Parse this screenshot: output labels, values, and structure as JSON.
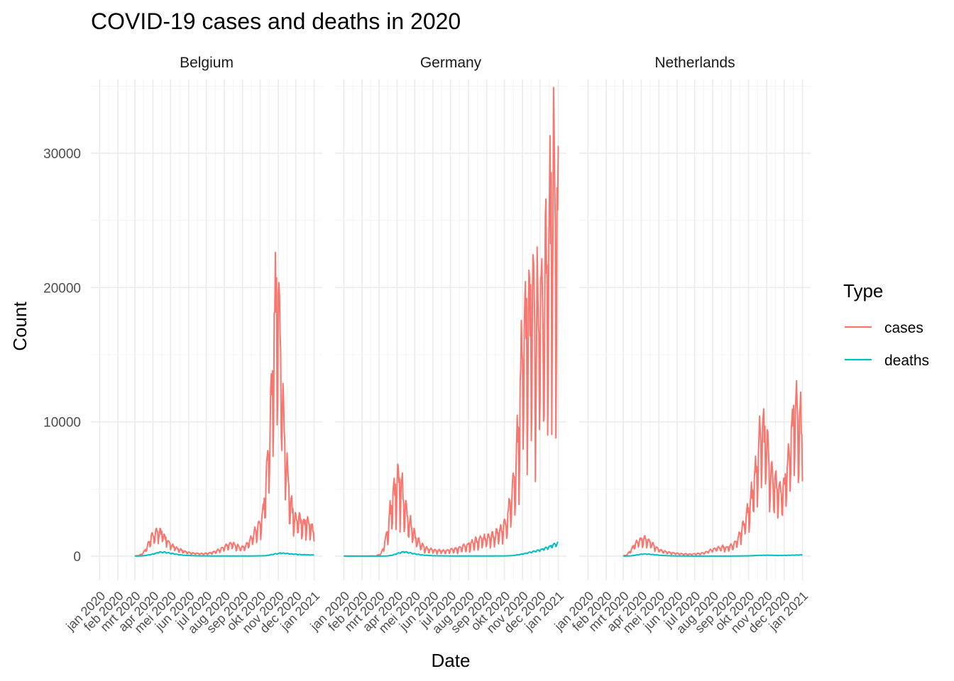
{
  "chart_data": {
    "type": "line",
    "title": "COVID-19 cases and deaths in 2020",
    "xlabel": "Date",
    "ylabel": "Count",
    "ylim": [
      -1800,
      35500
    ],
    "yticks": [
      0,
      10000,
      20000,
      30000
    ],
    "ytick_labels": [
      "0",
      "10000",
      "20000",
      "30000"
    ],
    "xlim": [
      "2019-12-17",
      "2021-01-15"
    ],
    "xticks": [
      "2020-01-01",
      "2020-02-01",
      "2020-03-01",
      "2020-04-01",
      "2020-05-01",
      "2020-06-01",
      "2020-07-01",
      "2020-08-01",
      "2020-09-01",
      "2020-10-01",
      "2020-11-01",
      "2020-12-01",
      "2021-01-01"
    ],
    "xtick_labels": [
      "jan 2020",
      "feb 2020",
      "mrt 2020",
      "apr 2020",
      "mei 2020",
      "jun 2020",
      "jul 2020",
      "aug 2020",
      "sep 2020",
      "okt 2020",
      "nov 2020",
      "dec 2020",
      "jan 2021"
    ],
    "grid": true,
    "legend": {
      "title": "Type",
      "position": "right",
      "entries": [
        {
          "label": "cases",
          "color": "#F8766D"
        },
        {
          "label": "deaths",
          "color": "#00BFC4"
        }
      ]
    },
    "panels": [
      {
        "name": "Belgium",
        "series": [
          {
            "name": "cases",
            "color": "#F8766D",
            "x": [
              "2020-03-01",
              "2020-03-08",
              "2020-03-15",
              "2020-03-22",
              "2020-03-29",
              "2020-04-05",
              "2020-04-10",
              "2020-04-15",
              "2020-04-22",
              "2020-04-29",
              "2020-05-06",
              "2020-05-15",
              "2020-05-25",
              "2020-06-05",
              "2020-06-15",
              "2020-06-25",
              "2020-07-05",
              "2020-07-15",
              "2020-07-25",
              "2020-08-01",
              "2020-08-08",
              "2020-08-15",
              "2020-08-22",
              "2020-08-29",
              "2020-09-05",
              "2020-09-12",
              "2020-09-19",
              "2020-09-26",
              "2020-10-03",
              "2020-10-10",
              "2020-10-17",
              "2020-10-22",
              "2020-10-26",
              "2020-10-30",
              "2020-11-03",
              "2020-11-08",
              "2020-11-14",
              "2020-11-21",
              "2020-11-28",
              "2020-12-05",
              "2020-12-12",
              "2020-12-19",
              "2020-12-26",
              "2021-01-01"
            ],
            "y": [
              10,
              50,
              200,
              650,
              1350,
              1650,
              1800,
              1700,
              1300,
              950,
              700,
              500,
              320,
              230,
              190,
              170,
              200,
              300,
              480,
              650,
              800,
              850,
              750,
              600,
              650,
              1000,
              1500,
              2000,
              2500,
              4500,
              9000,
              13500,
              17000,
              19000,
              16500,
              11000,
              7000,
              4000,
              2800,
              2600,
              2500,
              2400,
              2200,
              1600
            ]
          },
          {
            "name": "deaths",
            "color": "#00BFC4",
            "x": [
              "2020-03-01",
              "2020-03-15",
              "2020-03-29",
              "2020-04-05",
              "2020-04-12",
              "2020-04-19",
              "2020-04-26",
              "2020-05-10",
              "2020-05-25",
              "2020-06-15",
              "2020-07-15",
              "2020-08-15",
              "2020-09-15",
              "2020-10-10",
              "2020-10-25",
              "2020-11-05",
              "2020-11-12",
              "2020-11-25",
              "2020-12-10",
              "2020-12-25",
              "2021-01-01"
            ],
            "y": [
              0,
              20,
              120,
              200,
              290,
              300,
              250,
              140,
              60,
              20,
              10,
              10,
              10,
              30,
              150,
              230,
              210,
              150,
              110,
              90,
              80
            ]
          }
        ]
      },
      {
        "name": "Germany",
        "series": [
          {
            "name": "cases",
            "color": "#F8766D",
            "x": [
              "2020-01-01",
              "2020-02-01",
              "2020-02-25",
              "2020-03-05",
              "2020-03-12",
              "2020-03-19",
              "2020-03-26",
              "2020-04-02",
              "2020-04-09",
              "2020-04-16",
              "2020-04-23",
              "2020-04-30",
              "2020-05-07",
              "2020-05-15",
              "2020-05-25",
              "2020-06-05",
              "2020-06-15",
              "2020-06-25",
              "2020-07-05",
              "2020-07-15",
              "2020-07-25",
              "2020-08-05",
              "2020-08-15",
              "2020-08-25",
              "2020-09-05",
              "2020-09-15",
              "2020-09-25",
              "2020-10-05",
              "2020-10-12",
              "2020-10-19",
              "2020-10-26",
              "2020-11-02",
              "2020-11-09",
              "2020-11-16",
              "2020-11-23",
              "2020-11-30",
              "2020-12-07",
              "2020-12-14",
              "2020-12-19",
              "2020-12-24",
              "2020-12-29",
              "2021-01-01"
            ],
            "y": [
              0,
              0,
              10,
              200,
              1100,
              2700,
              4500,
              5400,
              4800,
              3300,
              2300,
              1600,
              1000,
              700,
              500,
              400,
              350,
              400,
              450,
              550,
              700,
              900,
              1100,
              1200,
              1300,
              1500,
              1800,
              2500,
              4000,
              6000,
              10000,
              15000,
              17000,
              17500,
              17000,
              17500,
              18500,
              21000,
              25000,
              26000,
              24000,
              23000
            ]
          },
          {
            "name": "deaths",
            "color": "#00BFC4",
            "x": [
              "2020-01-01",
              "2020-02-01",
              "2020-03-01",
              "2020-03-15",
              "2020-03-25",
              "2020-04-05",
              "2020-04-12",
              "2020-04-20",
              "2020-05-01",
              "2020-05-15",
              "2020-06-01",
              "2020-07-01",
              "2020-08-01",
              "2020-09-01",
              "2020-10-01",
              "2020-10-15",
              "2020-11-01",
              "2020-11-15",
              "2020-12-01",
              "2020-12-15",
              "2020-12-25",
              "2021-01-01"
            ],
            "y": [
              0,
              0,
              0,
              10,
              80,
              250,
              320,
              270,
              170,
              80,
              30,
              10,
              10,
              10,
              15,
              40,
              150,
              300,
              450,
              650,
              850,
              950
            ]
          }
        ]
      },
      {
        "name": "Netherlands",
        "series": [
          {
            "name": "cases",
            "color": "#F8766D",
            "x": [
              "2020-03-01",
              "2020-03-08",
              "2020-03-15",
              "2020-03-22",
              "2020-03-29",
              "2020-04-05",
              "2020-04-12",
              "2020-04-19",
              "2020-04-26",
              "2020-05-06",
              "2020-05-15",
              "2020-05-25",
              "2020-06-05",
              "2020-06-15",
              "2020-06-25",
              "2020-07-05",
              "2020-07-15",
              "2020-07-25",
              "2020-08-05",
              "2020-08-15",
              "2020-08-25",
              "2020-09-05",
              "2020-09-15",
              "2020-09-25",
              "2020-10-05",
              "2020-10-12",
              "2020-10-19",
              "2020-10-25",
              "2020-11-01",
              "2020-11-08",
              "2020-11-15",
              "2020-11-22",
              "2020-11-29",
              "2020-12-06",
              "2020-12-13",
              "2020-12-20",
              "2020-12-27",
              "2021-01-01"
            ],
            "y": [
              10,
              100,
              500,
              900,
              1100,
              1200,
              1100,
              850,
              600,
              400,
              300,
              220,
              170,
              150,
              140,
              160,
              220,
              350,
              550,
              650,
              600,
              800,
              1400,
              2500,
              4000,
              5800,
              7800,
              9500,
              8000,
              6000,
              5200,
              4800,
              4700,
              6300,
              8500,
              11000,
              9800,
              9000
            ]
          },
          {
            "name": "deaths",
            "color": "#00BFC4",
            "x": [
              "2020-03-01",
              "2020-03-15",
              "2020-03-29",
              "2020-04-05",
              "2020-04-12",
              "2020-04-20",
              "2020-05-01",
              "2020-05-15",
              "2020-06-01",
              "2020-07-01",
              "2020-08-01",
              "2020-09-01",
              "2020-10-01",
              "2020-10-20",
              "2020-11-05",
              "2020-11-20",
              "2020-12-05",
              "2020-12-20",
              "2021-01-01"
            ],
            "y": [
              0,
              20,
              120,
              160,
              150,
              120,
              70,
              30,
              10,
              5,
              5,
              5,
              20,
              60,
              70,
              50,
              60,
              80,
              90
            ]
          }
        ]
      }
    ]
  }
}
